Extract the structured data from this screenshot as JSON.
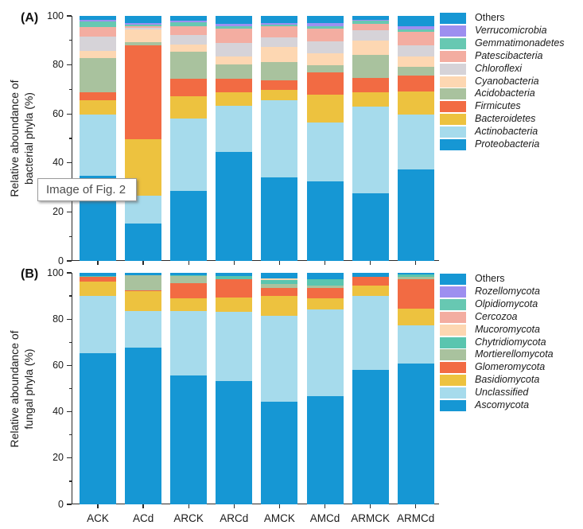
{
  "figure": {
    "tooltip": "Image of Fig. 2",
    "panel_a_label": "(A)",
    "panel_b_label": "(B)"
  },
  "chart_data": [
    {
      "type": "bar",
      "stacked": true,
      "panel": "A",
      "ylabel_line1": "Relative aboundance of",
      "ylabel_line2": "bacterial phyla (%)",
      "ylim": [
        0,
        100
      ],
      "yticks": [
        0,
        20,
        40,
        60,
        80,
        100
      ],
      "yticks_minor": [
        10,
        30,
        50,
        70,
        90
      ],
      "grid": false,
      "legend_position": "right",
      "show_x_labels": false,
      "categories": [
        "ACK",
        "ACd",
        "ARCK",
        "ARCd",
        "AMCK",
        "AMCd",
        "ARMCK",
        "ARMCd"
      ],
      "series": [
        {
          "name": "Proteobacteria",
          "italic": true,
          "color": "#1697d4",
          "values": [
            34.7,
            15.2,
            28.7,
            44.4,
            34.2,
            32.5,
            27.6,
            37.4
          ]
        },
        {
          "name": "Actinobacteria",
          "italic": true,
          "color": "#a6dbec",
          "values": [
            24.9,
            11.3,
            29.5,
            19.0,
            31.4,
            23.9,
            35.3,
            22.2
          ]
        },
        {
          "name": "Bacteroidetes",
          "italic": true,
          "color": "#edc23f",
          "values": [
            6.0,
            23.3,
            9.1,
            5.4,
            4.3,
            11.3,
            5.9,
            9.4
          ]
        },
        {
          "name": "Firmicutes",
          "italic": true,
          "color": "#f26b43",
          "values": [
            3.2,
            38.2,
            7.2,
            5.5,
            3.8,
            9.3,
            6.0,
            6.6
          ]
        },
        {
          "name": "Acidobacteria",
          "italic": true,
          "color": "#a9c29e",
          "values": [
            14.1,
            1.3,
            10.8,
            5.9,
            7.6,
            2.9,
            9.2,
            3.6
          ]
        },
        {
          "name": "Cyanobacteria",
          "italic": true,
          "color": "#fdd7b2",
          "values": [
            2.7,
            5.1,
            3.0,
            3.2,
            6.0,
            5.0,
            6.0,
            4.3
          ]
        },
        {
          "name": "Chloroflexi",
          "italic": true,
          "color": "#d6d3d8",
          "values": [
            6.0,
            0.8,
            3.8,
            5.5,
            3.8,
            4.8,
            4.1,
            4.6
          ]
        },
        {
          "name": "Patescibacteria",
          "italic": true,
          "color": "#f3ada1",
          "values": [
            3.8,
            0.7,
            3.6,
            6.0,
            4.6,
            5.2,
            2.5,
            5.4
          ]
        },
        {
          "name": "Gemmatimonadetes",
          "italic": true,
          "color": "#67c8b2",
          "values": [
            2.3,
            0.6,
            1.8,
            1.0,
            0.8,
            1.0,
            1.3,
            0.9
          ]
        },
        {
          "name": "Verrucomicrobia",
          "italic": true,
          "color": "#9d8ff0",
          "values": [
            0.6,
            0.7,
            0.6,
            0.9,
            0.7,
            1.1,
            0.6,
            1.5
          ]
        },
        {
          "name": "Others",
          "italic": false,
          "color": "#1697d4",
          "values": [
            1.7,
            2.8,
            1.9,
            3.2,
            2.8,
            3.0,
            1.5,
            4.1
          ]
        }
      ]
    },
    {
      "type": "bar",
      "stacked": true,
      "panel": "B",
      "ylabel_line1": "Relative aboundance of",
      "ylabel_line2": "fungal phyla (%)",
      "ylim": [
        0,
        100
      ],
      "yticks": [
        0,
        20,
        40,
        60,
        80,
        100
      ],
      "yticks_minor": [
        10,
        30,
        50,
        70,
        90
      ],
      "grid": false,
      "legend_position": "right",
      "show_x_labels": true,
      "categories": [
        "ACK",
        "ACd",
        "ARCK",
        "ARCd",
        "AMCK",
        "AMCd",
        "ARMCK",
        "ARMCd"
      ],
      "series": [
        {
          "name": "Ascomycota",
          "italic": true,
          "color": "#1697d4",
          "values": [
            65.4,
            67.7,
            55.6,
            53.3,
            44.3,
            46.6,
            58.1,
            60.7
          ]
        },
        {
          "name": "Unclassified",
          "italic": true,
          "color": "#a6dbec",
          "values": [
            24.5,
            15.7,
            28.0,
            29.8,
            37.0,
            37.7,
            31.9,
            16.7
          ]
        },
        {
          "name": "Basidiomycota",
          "italic": true,
          "color": "#edc23f",
          "values": [
            6.4,
            8.6,
            5.3,
            6.2,
            8.7,
            4.8,
            4.6,
            7.1
          ]
        },
        {
          "name": "Glomeromycota",
          "italic": true,
          "color": "#f26b43",
          "values": [
            1.9,
            0.5,
            6.8,
            8.0,
            3.4,
            4.3,
            3.7,
            12.8
          ]
        },
        {
          "name": "Mortierellomycota",
          "italic": true,
          "color": "#a9c29e",
          "values": [
            0.0,
            6.6,
            2.8,
            0.0,
            1.7,
            1.2,
            0.0,
            1.0
          ]
        },
        {
          "name": "Chytridiomycota",
          "italic": true,
          "color": "#5ac5af",
          "values": [
            0.4,
            0.0,
            0.4,
            1.2,
            1.8,
            2.7,
            0.0,
            0.9
          ]
        },
        {
          "name": "Mucoromycota",
          "italic": true,
          "color": "#fdd7b2",
          "values": [
            0.0,
            0.0,
            0.0,
            0.0,
            0.8,
            0.0,
            0.0,
            0.0
          ]
        },
        {
          "name": "Cercozoa",
          "italic": true,
          "color": "#f3ada1",
          "values": [
            0.0,
            0.0,
            0.0,
            0.0,
            0.0,
            0.0,
            0.0,
            0.0
          ]
        },
        {
          "name": "Olpidiomycota",
          "italic": true,
          "color": "#67c8b2",
          "values": [
            0.0,
            0.0,
            0.0,
            0.0,
            0.0,
            0.0,
            0.0,
            0.0
          ]
        },
        {
          "name": "Rozellomycota",
          "italic": true,
          "color": "#9d8ff0",
          "values": [
            0.0,
            0.0,
            0.0,
            0.0,
            0.0,
            0.0,
            0.0,
            0.0
          ]
        },
        {
          "name": "Others",
          "italic": false,
          "color": "#1697d4",
          "values": [
            1.4,
            0.9,
            1.1,
            1.5,
            2.3,
            2.7,
            1.7,
            0.8
          ]
        }
      ]
    }
  ]
}
